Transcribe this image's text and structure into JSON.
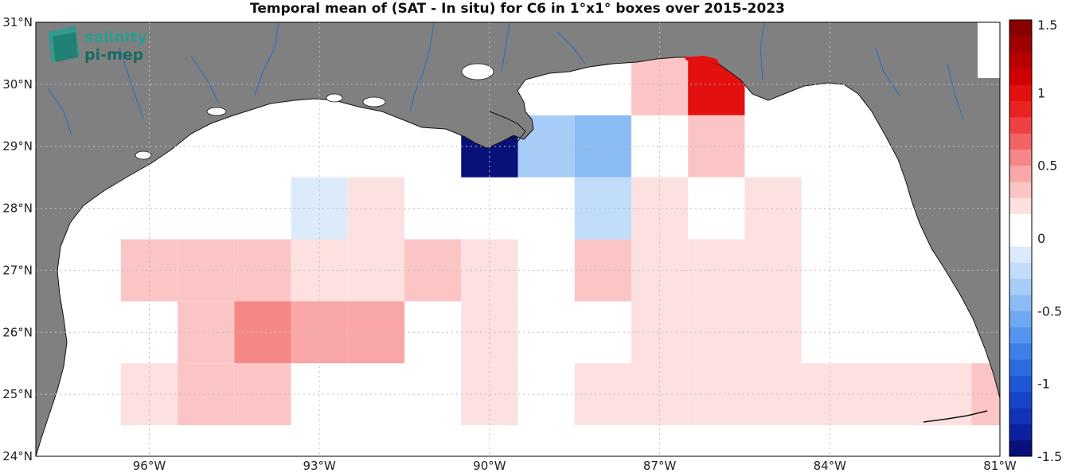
{
  "title": "Temporal mean of (SAT - In situ) for C6 in 1°x1° boxes over 2015-2023",
  "logo": {
    "line1": "salinity",
    "line2": "pi-mep"
  },
  "map": {
    "lon_range": [
      -98,
      -81
    ],
    "lat_range": [
      24,
      31
    ],
    "lat_ticks": [
      {
        "value": 24,
        "label": "24°N"
      },
      {
        "value": 25,
        "label": "25°N"
      },
      {
        "value": 26,
        "label": "26°N"
      },
      {
        "value": 27,
        "label": "27°N"
      },
      {
        "value": 28,
        "label": "28°N"
      },
      {
        "value": 29,
        "label": "29°N"
      },
      {
        "value": 30,
        "label": "30°N"
      },
      {
        "value": 31,
        "label": "31°N"
      }
    ],
    "lon_ticks": [
      {
        "value": -96,
        "label": "96°W"
      },
      {
        "value": -93,
        "label": "93°W"
      },
      {
        "value": -90,
        "label": "90°W"
      },
      {
        "value": -87,
        "label": "87°W"
      },
      {
        "value": -84,
        "label": "84°W"
      },
      {
        "value": -81,
        "label": "81°W"
      }
    ],
    "colors": {
      "land": "#808080",
      "ocean": "#ffffff",
      "rivers": "#1f6fc7",
      "grid": "#bfbfbf"
    }
  },
  "colorbar": {
    "min": -1.5,
    "max": 1.5,
    "ticks": [
      {
        "value": 1.5,
        "label": "1.5"
      },
      {
        "value": 1,
        "label": "1"
      },
      {
        "value": 0.5,
        "label": "0.5"
      },
      {
        "value": 0,
        "label": "0"
      },
      {
        "value": -0.5,
        "label": "-0.5"
      },
      {
        "value": -1,
        "label": "-1"
      },
      {
        "value": -1.5,
        "label": "-1.5"
      }
    ],
    "colors": [
      "#08107a",
      "#0c21a0",
      "#1232b8",
      "#1745c9",
      "#1f58d6",
      "#2c6ce0",
      "#3c80e8",
      "#5494ee",
      "#6ea8f2",
      "#8abbf5",
      "#a6cdf8",
      "#c2ddfa",
      "#dcebfc",
      "#ffffff",
      "#ffffff",
      "#fde0e0",
      "#fbc5c5",
      "#f9a7a7",
      "#f68787",
      "#f26464",
      "#ee4242",
      "#e92222",
      "#e40f0f",
      "#d10000",
      "#b80000",
      "#a00000",
      "#880000"
    ]
  },
  "cells": [
    {
      "lat": 30,
      "lon": -87,
      "value": 0.35
    },
    {
      "lat": 30,
      "lon": -86,
      "value": 1.0
    },
    {
      "lat": 29,
      "lon": -90,
      "value": -1.5
    },
    {
      "lat": 29,
      "lon": -89,
      "value": -0.3
    },
    {
      "lat": 29,
      "lon": -88,
      "value": -0.4
    },
    {
      "lat": 29,
      "lon": -86,
      "value": 0.35
    },
    {
      "lat": 28,
      "lon": -93,
      "value": -0.15
    },
    {
      "lat": 28,
      "lon": -92,
      "value": 0.2
    },
    {
      "lat": 28,
      "lon": -88,
      "value": -0.2
    },
    {
      "lat": 28,
      "lon": -87,
      "value": 0.2
    },
    {
      "lat": 28,
      "lon": -85,
      "value": 0.2
    },
    {
      "lat": 27,
      "lon": -96,
      "value": 0.35
    },
    {
      "lat": 27,
      "lon": -95,
      "value": 0.35
    },
    {
      "lat": 27,
      "lon": -94,
      "value": 0.35
    },
    {
      "lat": 27,
      "lon": -93,
      "value": 0.2
    },
    {
      "lat": 27,
      "lon": -92,
      "value": 0.2
    },
    {
      "lat": 27,
      "lon": -91,
      "value": 0.35
    },
    {
      "lat": 27,
      "lon": -90,
      "value": 0.2
    },
    {
      "lat": 27,
      "lon": -88,
      "value": 0.35
    },
    {
      "lat": 27,
      "lon": -87,
      "value": 0.2
    },
    {
      "lat": 27,
      "lon": -86,
      "value": 0.2
    },
    {
      "lat": 27,
      "lon": -85,
      "value": 0.2
    },
    {
      "lat": 26,
      "lon": -95,
      "value": 0.35
    },
    {
      "lat": 26,
      "lon": -94,
      "value": 0.5
    },
    {
      "lat": 26,
      "lon": -93,
      "value": 0.4
    },
    {
      "lat": 26,
      "lon": -92,
      "value": 0.4
    },
    {
      "lat": 26,
      "lon": -90,
      "value": 0.2
    },
    {
      "lat": 26,
      "lon": -87,
      "value": 0.2
    },
    {
      "lat": 26,
      "lon": -86,
      "value": 0.2
    },
    {
      "lat": 26,
      "lon": -85,
      "value": 0.2
    },
    {
      "lat": 25,
      "lon": -96,
      "value": 0.2
    },
    {
      "lat": 25,
      "lon": -95,
      "value": 0.35
    },
    {
      "lat": 25,
      "lon": -94,
      "value": 0.35
    },
    {
      "lat": 25,
      "lon": -90,
      "value": 0.2
    },
    {
      "lat": 25,
      "lon": -88,
      "value": 0.2
    },
    {
      "lat": 25,
      "lon": -87,
      "value": 0.2
    },
    {
      "lat": 25,
      "lon": -86,
      "value": 0.2
    },
    {
      "lat": 25,
      "lon": -85,
      "value": 0.2
    },
    {
      "lat": 25,
      "lon": -84,
      "value": 0.2
    },
    {
      "lat": 25,
      "lon": -83,
      "value": 0.2
    },
    {
      "lat": 25,
      "lon": -82,
      "value": 0.2
    },
    {
      "lat": 25,
      "lon": -81,
      "value": 0.35
    }
  ]
}
